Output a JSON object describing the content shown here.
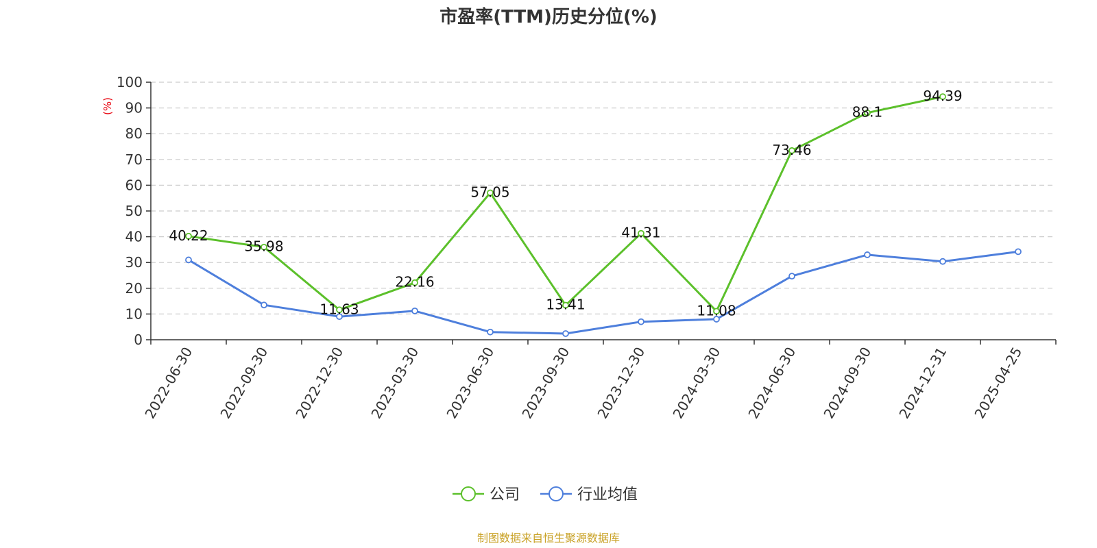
{
  "chart_data": {
    "type": "line",
    "title": "市盈率(TTM)历史分位(%)",
    "ylabel": "(%)",
    "ylim": [
      0,
      100
    ],
    "yticks": [
      0,
      10,
      20,
      30,
      40,
      50,
      60,
      70,
      80,
      90,
      100
    ],
    "categories": [
      "2022-06-30",
      "2022-09-30",
      "2022-12-30",
      "2023-03-30",
      "2023-06-30",
      "2023-09-30",
      "2023-12-30",
      "2024-03-30",
      "2024-06-30",
      "2024-09-30",
      "2024-12-31",
      "2025-04-25"
    ],
    "grid": "horizontal-dashed",
    "legend_position": "bottom-center",
    "series": [
      {
        "name": "公司",
        "color": "#5cc02b",
        "values": [
          40.22,
          35.98,
          11.63,
          22.16,
          57.05,
          13.41,
          41.31,
          11.08,
          73.46,
          88.1,
          94.39,
          null
        ],
        "labels": [
          "40.22",
          "35.98",
          "11.63",
          "22.16",
          "57.05",
          "13.41",
          "41.31",
          "11.08",
          "73.46",
          "88.1",
          "94.39",
          null
        ]
      },
      {
        "name": "行业均值",
        "color": "#4e7fdc",
        "values": [
          31,
          13.5,
          9,
          11.2,
          3,
          2.4,
          7,
          8,
          24.7,
          33,
          30.4,
          34.2
        ],
        "labels": null
      }
    ]
  },
  "source": "制图数据来自恒生聚源数据库"
}
